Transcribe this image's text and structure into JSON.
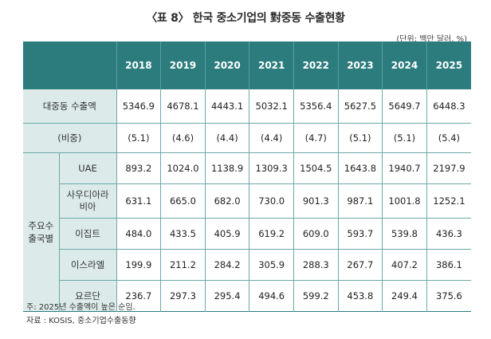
{
  "title": "〈표 8〉 한국 중소기업의 對중동 수출현황",
  "unit": "(단위: 백만 달러, %)",
  "table": {
    "years": [
      "2018",
      "2019",
      "2020",
      "2021",
      "2022",
      "2023",
      "2024",
      "2025"
    ],
    "total_label": "대중동 수출액",
    "total_values": [
      "5346.9",
      "4678.1",
      "4443.1",
      "5032.1",
      "5356.4",
      "5627.5",
      "5649.7",
      "6448.3"
    ],
    "ratio_label": "(비중)",
    "ratio_values": [
      "(5.1)",
      "(4.6)",
      "(4.4)",
      "(4.4)",
      "(4.7)",
      "(5.1)",
      "(5.1)",
      "(5.4)"
    ],
    "group_label_line1": "주요수",
    "group_label_line2": "출국별",
    "countries": [
      {
        "name": "UAE",
        "values": [
          "893.2",
          "1024.0",
          "1138.9",
          "1309.3",
          "1504.5",
          "1643.8",
          "1940.7",
          "2197.9"
        ]
      },
      {
        "name": "사우디아라비아",
        "name_line1": "사우디아라",
        "name_line2": "비아",
        "values": [
          "631.1",
          "665.0",
          "682.0",
          "730.0",
          "901.3",
          "987.1",
          "1001.8",
          "1252.1"
        ]
      },
      {
        "name": "이집트",
        "values": [
          "484.0",
          "433.5",
          "405.9",
          "619.2",
          "609.0",
          "593.7",
          "539.8",
          "436.3"
        ]
      },
      {
        "name": "이스라엘",
        "values": [
          "199.9",
          "211.2",
          "284.2",
          "305.9",
          "288.3",
          "267.7",
          "407.2",
          "386.1"
        ]
      },
      {
        "name": "요르단",
        "values": [
          "236.7",
          "297.3",
          "295.4",
          "494.6",
          "599.2",
          "453.8",
          "249.4",
          "375.6"
        ]
      }
    ]
  },
  "notes": {
    "note": "주: 2025년 수출액이 높은 순임.",
    "source": "자료 : KOSIS, 중소기업수출동향"
  }
}
